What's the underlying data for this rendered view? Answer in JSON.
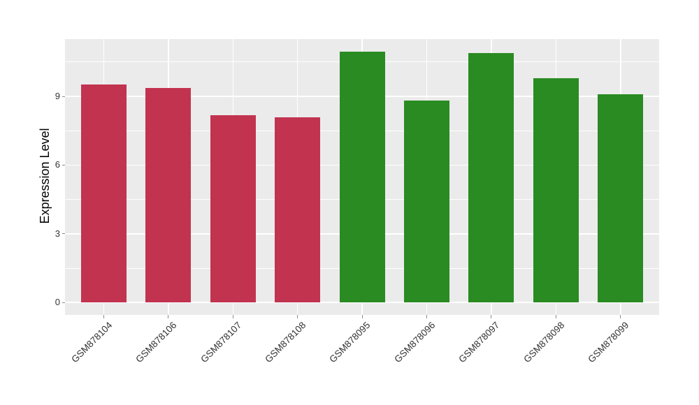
{
  "chart_data": {
    "type": "bar",
    "title": "",
    "xlabel": "",
    "ylabel": "Expression Level",
    "categories": [
      "GSM878104",
      "GSM878106",
      "GSM878107",
      "GSM878108",
      "GSM878095",
      "GSM878096",
      "GSM878097",
      "GSM878098",
      "GSM878099"
    ],
    "values": [
      9.52,
      9.37,
      8.19,
      8.08,
      10.95,
      8.83,
      10.89,
      9.81,
      9.08
    ],
    "bar_colors": [
      "#C23350",
      "#C23350",
      "#C23350",
      "#C23350",
      "#2A8B22",
      "#2A8B22",
      "#2A8B22",
      "#2A8B22",
      "#2A8B22"
    ],
    "y_tick_labels": [
      "0",
      "3",
      "6",
      "9"
    ],
    "y_tick_values": [
      0,
      3,
      6,
      9
    ],
    "y_minor_values": [
      1.5,
      4.5,
      7.5,
      10.5
    ],
    "ylim": [
      -0.55,
      11.52
    ],
    "legend": "none",
    "grid": {
      "major": true,
      "minor": true
    },
    "colors": {
      "red_bars": "#C23350",
      "green_bars": "#2A8B22",
      "panel_background": "#EBEBEB",
      "grid_lines": "#FFFFFF",
      "axis_text": "#333333",
      "tick_marks": "#8C8C8C",
      "figure_background": "#FFFFFF"
    }
  }
}
